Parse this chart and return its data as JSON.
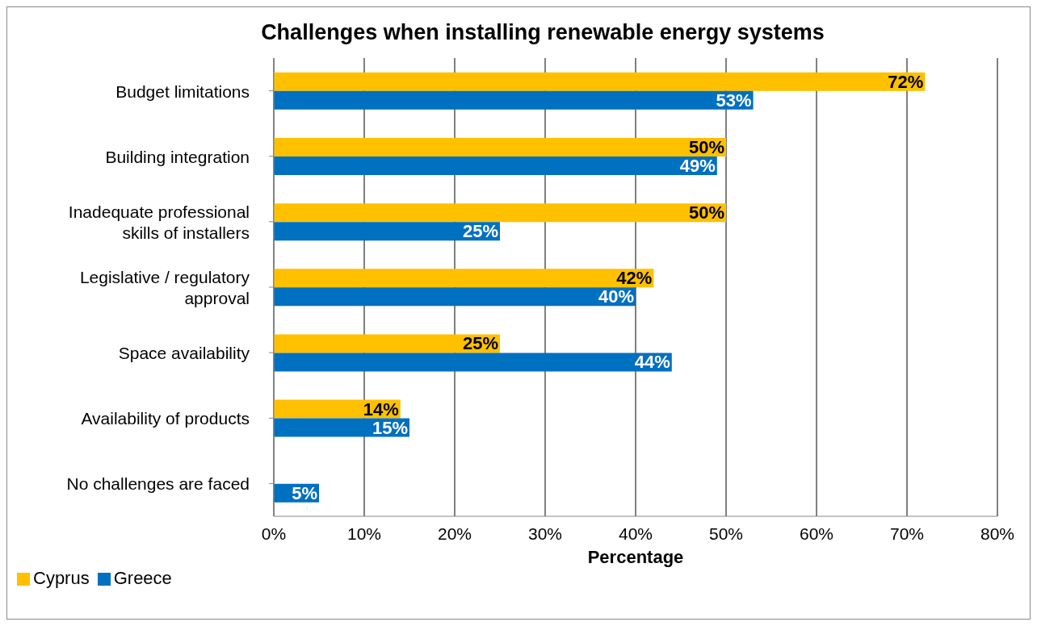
{
  "chart_data": {
    "type": "bar",
    "orientation": "horizontal",
    "title": "Challenges when installing renewable energy systems",
    "xlabel": "Percentage",
    "categories": [
      "Budget limitations",
      "Building integration",
      "Inadequate professional skills of installers",
      "Legislative / regulatory approval",
      "Space availability",
      "Availability of products",
      "No challenges are faced"
    ],
    "series": [
      {
        "name": "Cyprus",
        "color": "#ffc000",
        "values": [
          72,
          50,
          50,
          42,
          25,
          14,
          null
        ],
        "value_labels": [
          "72%",
          "50%",
          "50%",
          "42%",
          "25%",
          "14%",
          null
        ]
      },
      {
        "name": "Greece",
        "color": "#0070c0",
        "values": [
          53,
          49,
          25,
          40,
          44,
          15,
          5
        ],
        "value_labels": [
          "53%",
          "49%",
          "25%",
          "40%",
          "44%",
          "15%",
          "5%"
        ]
      }
    ],
    "xlim": [
      0,
      80
    ],
    "xticks": [
      {
        "value": 0,
        "label": "0%"
      },
      {
        "value": 10,
        "label": "10%"
      },
      {
        "value": 20,
        "label": "20%"
      },
      {
        "value": 30,
        "label": "30%"
      },
      {
        "value": 40,
        "label": "40%"
      },
      {
        "value": 50,
        "label": "50%"
      },
      {
        "value": 60,
        "label": "60%"
      },
      {
        "value": 70,
        "label": "70%"
      },
      {
        "value": 80,
        "label": "80%"
      }
    ],
    "grid": "x",
    "legend": "bottom left"
  }
}
